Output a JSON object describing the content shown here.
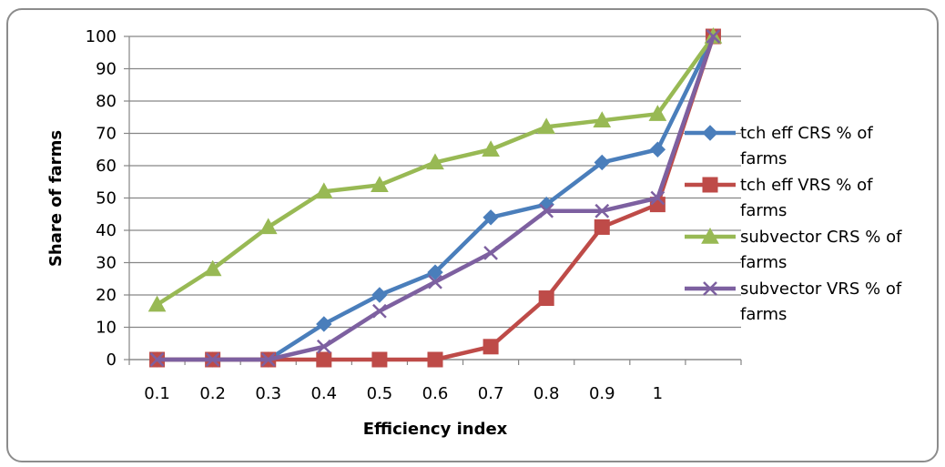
{
  "chart_data": {
    "type": "line",
    "xlabel": "Efficiency index",
    "ylabel": "Share of farms",
    "categories": [
      "0.1",
      "0.2",
      "0.3",
      "0.4",
      "0.5",
      "0.6",
      "0.7",
      "0.8",
      "0.9",
      "1",
      ""
    ],
    "ylim": [
      0,
      100
    ],
    "yticks": [
      0,
      10,
      20,
      30,
      40,
      50,
      60,
      70,
      80,
      90,
      100
    ],
    "grid": true,
    "legend_position": "right",
    "series": [
      {
        "name": "tch eff CRS % of farms",
        "color": "#4a7ebb",
        "marker": "diamond",
        "values": [
          0,
          0,
          0,
          11,
          20,
          27,
          44,
          48,
          61,
          65,
          100
        ]
      },
      {
        "name": "tch eff VRS % of farms",
        "color": "#be4b48",
        "marker": "square",
        "values": [
          0,
          0,
          0,
          0,
          0,
          0,
          4,
          19,
          41,
          48,
          100
        ]
      },
      {
        "name": "subvector CRS % of farms",
        "color": "#98b954",
        "marker": "triangle",
        "values": [
          17,
          28,
          41,
          52,
          54,
          61,
          65,
          72,
          74,
          76,
          100
        ]
      },
      {
        "name": "subvector VRS % of farms",
        "color": "#7d60a0",
        "marker": "x",
        "values": [
          0,
          0,
          0,
          4,
          15,
          24,
          33,
          46,
          46,
          50,
          100
        ]
      }
    ]
  }
}
